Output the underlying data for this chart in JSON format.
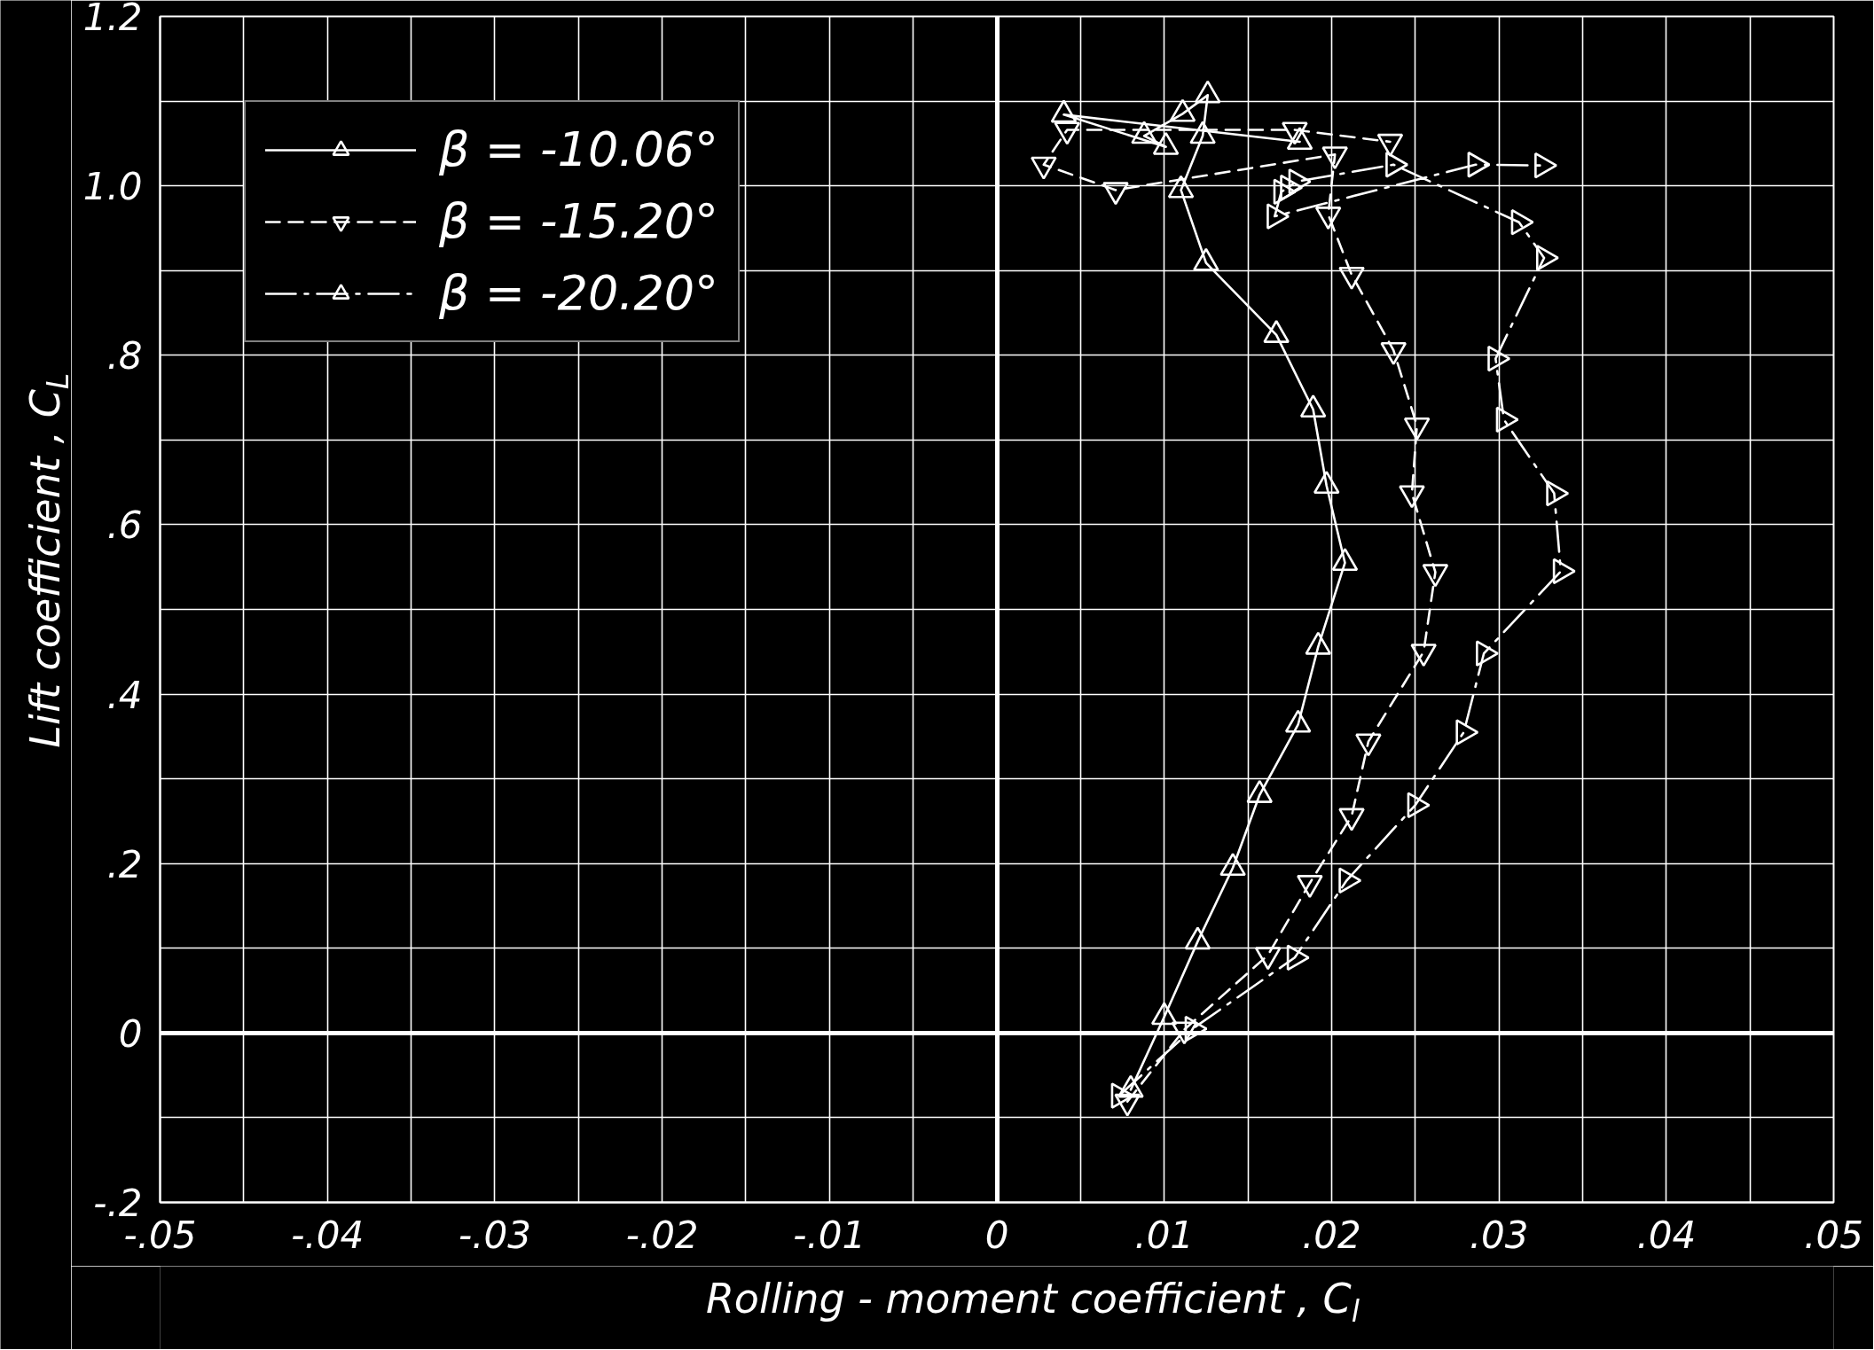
{
  "chart_data": {
    "type": "line",
    "xlabel": "Rolling - moment coefficient , C$_{l}$",
    "ylabel": "Lift coefficient , C$_{L}$",
    "xlim": [
      -0.05,
      0.05
    ],
    "ylim": [
      -0.2,
      1.2
    ],
    "xticks": [
      {
        "value": -0.05,
        "label": "-.05"
      },
      {
        "value": -0.045,
        "label": null
      },
      {
        "value": -0.04,
        "label": "-.04"
      },
      {
        "value": -0.035,
        "label": null
      },
      {
        "value": -0.03,
        "label": "-.03"
      },
      {
        "value": -0.025,
        "label": null
      },
      {
        "value": -0.02,
        "label": "-.02"
      },
      {
        "value": -0.015,
        "label": null
      },
      {
        "value": -0.01,
        "label": "-.01"
      },
      {
        "value": -0.005,
        "label": null
      },
      0,
      {
        "value": 0.005,
        "label": null
      },
      {
        "value": 0.01,
        "label": ".01"
      },
      {
        "value": 0.015,
        "label": null
      },
      {
        "value": 0.02,
        "label": ".02"
      },
      {
        "value": 0.025,
        "label": null
      },
      {
        "value": 0.03,
        "label": ".03"
      },
      {
        "value": 0.035,
        "label": null
      },
      {
        "value": 0.04,
        "label": ".04"
      },
      {
        "value": 0.045,
        "label": null
      },
      {
        "value": 0.05,
        "label": ".05"
      }
    ],
    "yticks": [
      {
        "value": -0.2,
        "label": "-.2"
      },
      {
        "value": -0.1,
        "label": null
      },
      0,
      {
        "value": 0.1,
        "label": null
      },
      {
        "value": 0.2,
        "label": ".2"
      },
      {
        "value": 0.3,
        "label": null
      },
      {
        "value": 0.4,
        "label": ".4"
      },
      {
        "value": 0.5,
        "label": null
      },
      {
        "value": 0.6,
        "label": ".6"
      },
      {
        "value": 0.7,
        "label": null
      },
      {
        "value": 0.8,
        "label": ".8"
      },
      {
        "value": 0.9,
        "label": null
      },
      {
        "value": 1.0,
        "label": "1.0"
      },
      {
        "value": 1.1,
        "label": null
      },
      1.2
    ],
    "grid": true,
    "legend": "top left",
    "marker": "triangle",
    "series": [
      {
        "name": "β = -10.06°",
        "color": "#ffffff",
        "line_style": "solid",
        "x": [
          0.008,
          0.01,
          0.012,
          0.0141,
          0.0157,
          0.018,
          0.0192,
          0.0208,
          0.0197,
          0.0189,
          0.0167,
          0.0125,
          0.011,
          0.0123,
          0.0126,
          0.0111,
          0.0088,
          0.0101,
          0.004,
          0.0181
        ],
        "values": [
          -0.067,
          0.019,
          0.108,
          0.195,
          0.281,
          0.364,
          0.456,
          0.555,
          0.646,
          0.736,
          0.824,
          0.909,
          0.995,
          1.059,
          1.107,
          1.085,
          1.059,
          1.046,
          1.084,
          1.052
        ]
      },
      {
        "name": "β = -15.20°",
        "color": "#ffffff",
        "line_style": "dashed",
        "x": [
          0.0078,
          0.0112,
          0.0162,
          0.0187,
          0.0212,
          0.0222,
          0.0255,
          0.0262,
          0.0248,
          0.0251,
          0.0237,
          0.0212,
          0.0198,
          0.0202,
          0.0071,
          0.0028,
          0.0042,
          0.0178,
          0.0235
        ],
        "values": [
          -0.081,
          0.004,
          0.092,
          0.177,
          0.256,
          0.344,
          0.45,
          0.544,
          0.637,
          0.717,
          0.806,
          0.895,
          0.966,
          1.037,
          0.995,
          1.025,
          1.066,
          1.066,
          1.052
        ]
      },
      {
        "name": "β = -20.20°",
        "color": "#ffffff",
        "line_style": "dashdot",
        "x": [
          0.0073,
          0.0117,
          0.0178,
          0.0209,
          0.025,
          0.0279,
          0.0291,
          0.0337,
          0.0333,
          0.0303,
          0.0298,
          0.0327,
          0.0312,
          0.0237,
          0.0179,
          0.0174,
          0.017,
          0.0166,
          0.0286,
          0.0326
        ],
        "values": [
          -0.074,
          0.005,
          0.089,
          0.18,
          0.269,
          0.355,
          0.448,
          0.545,
          0.637,
          0.724,
          0.796,
          0.915,
          0.957,
          1.025,
          1.005,
          0.998,
          0.993,
          0.964,
          1.025,
          1.024
        ]
      }
    ]
  }
}
